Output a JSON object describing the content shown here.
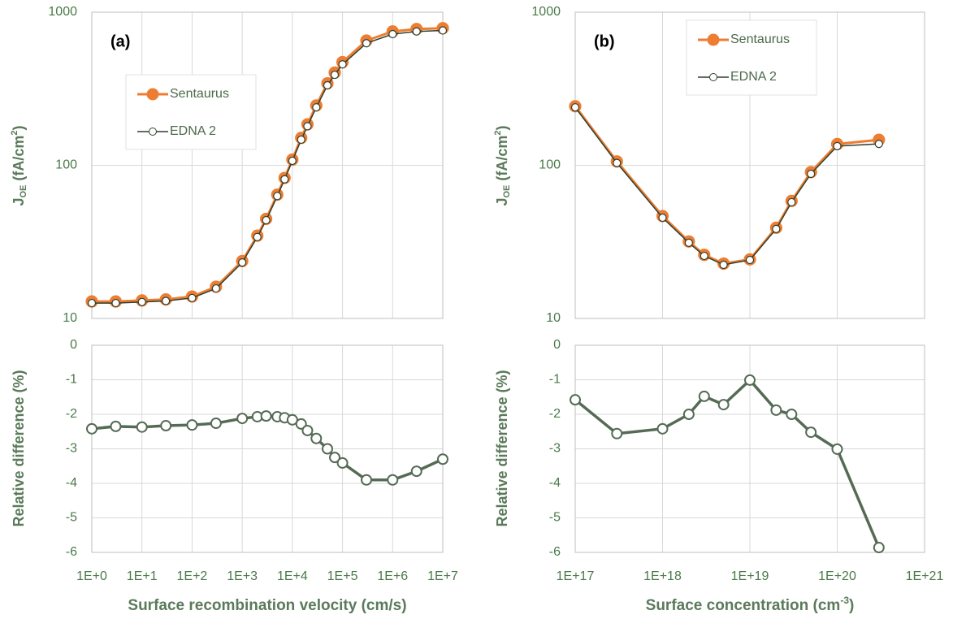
{
  "chart_data": [
    {
      "type": "line",
      "annotation": "(a)",
      "ylog": true,
      "grid": true,
      "legend": "center left",
      "x": [
        1,
        3,
        10,
        30,
        100,
        300,
        1000,
        2000,
        3000,
        5000,
        7000,
        10000,
        15000,
        20000,
        30000,
        50000,
        70000,
        100000,
        300000,
        1000000,
        3000000,
        10000000
      ],
      "xlim": [
        1,
        10000000
      ],
      "ylabel": [
        "J",
        "OE",
        " (fA/cm",
        "2",
        ")"
      ],
      "ylim": [
        10,
        1000
      ],
      "yticks": [
        10,
        100,
        1000
      ],
      "series": [
        {
          "name": "Sentaurus",
          "color": "#ed7d31",
          "values": [
            12.9,
            12.9,
            13.1,
            13.3,
            13.9,
            16.1,
            23.7,
            34.7,
            44.7,
            64.3,
            82.7,
            109,
            151,
            185,
            246,
            343,
            403,
            472,
            652,
            748,
            776,
            786
          ]
        },
        {
          "name": "EDNA 2",
          "color": "#2f3f2f",
          "values": [
            12.6,
            12.6,
            12.8,
            13.0,
            13.6,
            15.7,
            23.2,
            34,
            43.8,
            63,
            81,
            107,
            147,
            180,
            239,
            333,
            390,
            456,
            627,
            719,
            748,
            760
          ]
        }
      ]
    },
    {
      "type": "line",
      "grid": true,
      "ylog": false,
      "x": [
        1,
        3,
        10,
        30,
        100,
        300,
        1000,
        2000,
        3000,
        5000,
        7000,
        10000,
        15000,
        20000,
        30000,
        50000,
        70000,
        100000,
        300000,
        1000000,
        3000000,
        10000000
      ],
      "xlim": [
        1,
        10000000
      ],
      "xticks": [
        {
          "value": 1,
          "label": "1E+0"
        },
        {
          "value": 10,
          "label": "1E+1"
        },
        {
          "value": 100,
          "label": "1E+2"
        },
        {
          "value": 1000,
          "label": "1E+3"
        },
        {
          "value": 10000,
          "label": "1E+4"
        },
        {
          "value": 100000,
          "label": "1E+5"
        },
        {
          "value": 1000000,
          "label": "1E+6"
        },
        {
          "value": 10000000,
          "label": "1E+7"
        }
      ],
      "xlabel": [
        "Surface recombination velocity (cm/s)"
      ],
      "ylabel": [
        "Relative difference (%)"
      ],
      "ylim": [
        -6,
        0
      ],
      "yticks": [
        0,
        -1,
        -2,
        -3,
        -4,
        -5,
        -6
      ],
      "series": [
        {
          "color": "#556b55",
          "values": [
            -2.42,
            -2.35,
            -2.37,
            -2.33,
            -2.31,
            -2.26,
            -2.12,
            -2.07,
            -2.05,
            -2.07,
            -2.1,
            -2.16,
            -2.28,
            -2.47,
            -2.7,
            -3.0,
            -3.25,
            -3.41,
            -3.9,
            -3.9,
            -3.65,
            -3.3
          ]
        }
      ]
    },
    {
      "type": "line",
      "annotation": "(b)",
      "ylog": true,
      "grid": true,
      "legend": "upper center",
      "x": [
        1e+17,
        3e+17,
        1e+18,
        2e+18,
        3e+18,
        5e+18,
        1e+19,
        2e+19,
        3e+19,
        5e+19,
        1e+20,
        3e+20
      ],
      "xlim": [
        1e+17,
        1e+21
      ],
      "ylabel": [
        "J",
        "OE",
        " (fA/cm",
        "2",
        ")"
      ],
      "ylim": [
        10,
        1000
      ],
      "yticks": [
        10,
        100,
        1000
      ],
      "series": [
        {
          "name": "Sentaurus",
          "color": "#ed7d31",
          "values": [
            243,
            106,
            46.6,
            31.8,
            26.0,
            22.8,
            24.3,
            39.1,
            58.5,
            90.3,
            137.6,
            146.7
          ]
        },
        {
          "name": "EDNA 2",
          "color": "#2f3f2f",
          "values": [
            239,
            103.6,
            45.5,
            31.2,
            25.6,
            22.4,
            24.1,
            38.4,
            57.4,
            88,
            133.5,
            138
          ]
        }
      ]
    },
    {
      "type": "line",
      "grid": true,
      "ylog": false,
      "x": [
        1e+17,
        3e+17,
        1e+18,
        2e+18,
        3e+18,
        5e+18,
        1e+19,
        2e+19,
        3e+19,
        5e+19,
        1e+20,
        3e+20
      ],
      "xlim": [
        1e+17,
        1e+21
      ],
      "xticks": [
        {
          "value": 1e+17,
          "label": "1E+17"
        },
        {
          "value": 1e+18,
          "label": "1E+18"
        },
        {
          "value": 1e+19,
          "label": "1E+19"
        },
        {
          "value": 1e+20,
          "label": "1E+20"
        },
        {
          "value": 1e+21,
          "label": "1E+21"
        }
      ],
      "xlabel": [
        "Surface concentration (cm",
        "-3",
        ")"
      ],
      "ylabel": [
        "Relative difference (%)"
      ],
      "ylim": [
        -6,
        0
      ],
      "yticks": [
        0,
        -1,
        -2,
        -3,
        -4,
        -5,
        -6
      ],
      "series": [
        {
          "color": "#556b55",
          "values": [
            -1.58,
            -2.56,
            -2.42,
            -2.0,
            -1.48,
            -1.72,
            -1.01,
            -1.88,
            -2.0,
            -2.52,
            -3.01,
            -5.86
          ]
        }
      ]
    }
  ]
}
